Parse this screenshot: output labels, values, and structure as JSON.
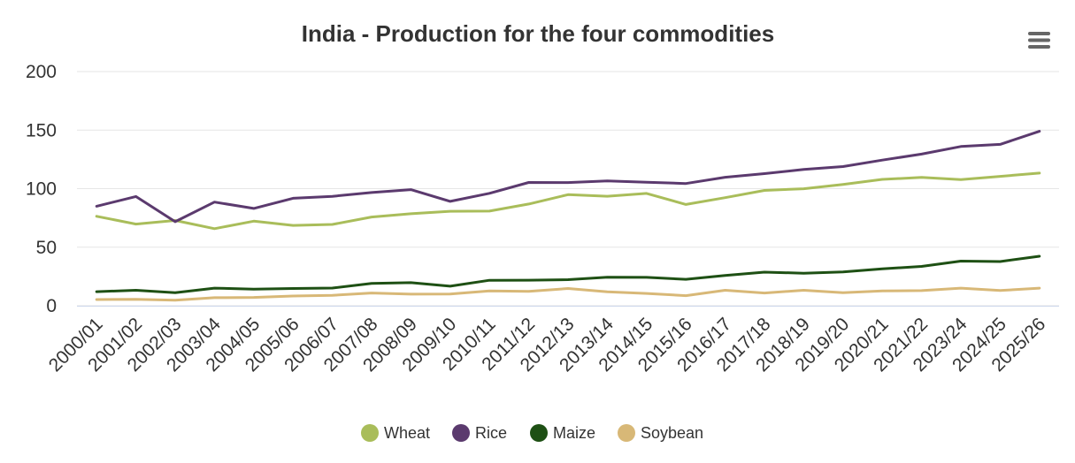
{
  "chart_data": {
    "type": "line",
    "title": "India - Production for the four commodities",
    "xlabel": "",
    "ylabel": "",
    "ylim": [
      0,
      200
    ],
    "yticks": [
      0,
      50,
      100,
      150,
      200
    ],
    "grid": true,
    "legend_position": "bottom-center",
    "categories": [
      "2000/01",
      "2001/02",
      "2002/03",
      "2003/04",
      "2004/05",
      "2005/06",
      "2006/07",
      "2007/08",
      "2008/09",
      "2009/10",
      "2010/11",
      "2011/12",
      "2012/13",
      "2013/14",
      "2014/15",
      "2015/16",
      "2016/17",
      "2017/18",
      "2018/19",
      "2019/20",
      "2020/21",
      "2021/22",
      "2023/24",
      "2024/25",
      "2025/26"
    ],
    "series": [
      {
        "name": "Wheat",
        "color": "#a9bd5a",
        "values": [
          76.4,
          69.7,
          72.8,
          65.8,
          72.2,
          68.6,
          69.4,
          75.8,
          78.6,
          80.7,
          80.8,
          86.9,
          94.9,
          93.5,
          95.9,
          86.5,
          92.3,
          98.5,
          99.9,
          103.6,
          107.9,
          109.6,
          107.7,
          110.5,
          113.3
        ]
      },
      {
        "name": "Rice",
        "color": "#5b3a6e",
        "values": [
          85.0,
          93.3,
          71.8,
          88.5,
          83.1,
          91.8,
          93.4,
          96.7,
          99.2,
          89.1,
          96.0,
          105.3,
          105.2,
          106.6,
          105.5,
          104.4,
          109.7,
          112.8,
          116.4,
          118.9,
          124.4,
          129.5,
          136.0,
          137.8,
          149.0
        ]
      },
      {
        "name": "Maize",
        "color": "#1e5014",
        "values": [
          12.0,
          13.2,
          11.2,
          15.0,
          14.2,
          14.7,
          15.1,
          19.0,
          19.7,
          16.7,
          21.7,
          21.8,
          22.3,
          24.3,
          24.2,
          22.6,
          25.9,
          28.7,
          27.8,
          28.8,
          31.5,
          33.6,
          38.1,
          37.7,
          42.3
        ]
      },
      {
        "name": "Soybean",
        "color": "#d8b877",
        "values": [
          5.3,
          5.4,
          4.7,
          6.9,
          7.1,
          8.3,
          8.9,
          10.9,
          9.9,
          10.0,
          12.7,
          12.2,
          14.7,
          11.9,
          10.5,
          8.6,
          13.2,
          10.9,
          13.2,
          11.1,
          12.6,
          12.9,
          15.0,
          13.0,
          15.0
        ]
      }
    ]
  },
  "menu": {
    "icon": "hamburger-menu-icon"
  }
}
